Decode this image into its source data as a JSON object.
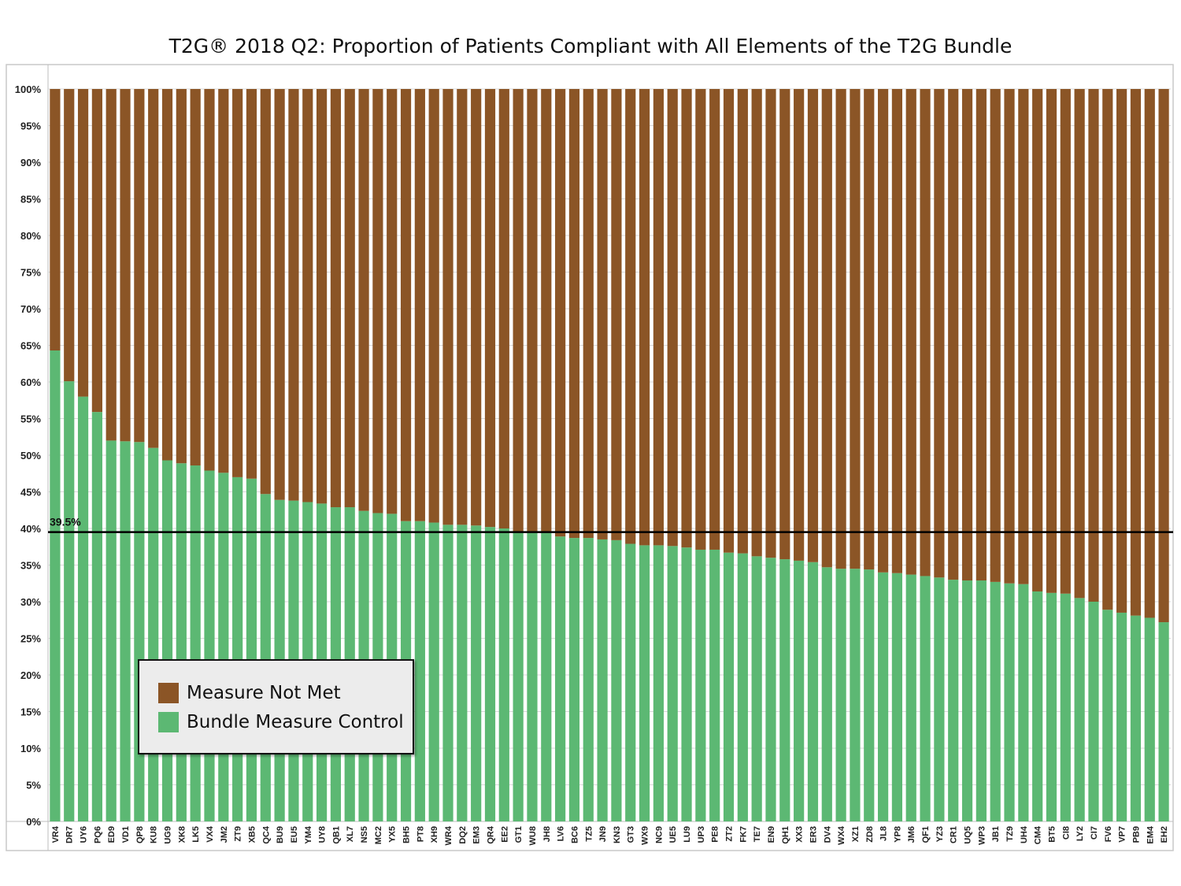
{
  "chart_data": {
    "type": "bar",
    "stacked": true,
    "title": "T2G® 2018 Q2: Proportion of Patients Compliant with All Elements of the T2G Bundle",
    "categories": [
      "VR4",
      "DR7",
      "UY6",
      "PQ6",
      "ED9",
      "VD1",
      "QP8",
      "KU8",
      "UG9",
      "XK8",
      "LK5",
      "VX4",
      "JM2",
      "ZT9",
      "XB5",
      "QC4",
      "BU9",
      "EU5",
      "YM4",
      "UY8",
      "QB1",
      "XL7",
      "NS5",
      "MC2",
      "YX5",
      "BH5",
      "PT8",
      "XH9",
      "WR4",
      "DQ2",
      "EM3",
      "QR4",
      "EE2",
      "GT1",
      "WU8",
      "JH8",
      "LV6",
      "BC6",
      "TZ5",
      "JN9",
      "KN3",
      "GT3",
      "WX9",
      "NC9",
      "UE5",
      "LU9",
      "UP3",
      "PE8",
      "ZT2",
      "FK7",
      "TE7",
      "EN9",
      "QH1",
      "XX3",
      "ER3",
      "DV4",
      "WX4",
      "XZ1",
      "ZD8",
      "JL8",
      "YP8",
      "JM6",
      "QF1",
      "YZ3",
      "CR1",
      "UQ5",
      "WP3",
      "JB1",
      "TZ9",
      "UH4",
      "CM4",
      "BT5",
      "CI8",
      "LY2",
      "CI7",
      "FV6",
      "VP7",
      "PB9",
      "EM4",
      "EH2"
    ],
    "series": [
      {
        "name": "Bundle Measure Control",
        "color": "#5cb873",
        "values": [
          64.3,
          60.1,
          58.0,
          55.9,
          52.0,
          51.9,
          51.8,
          51.0,
          49.3,
          48.9,
          48.6,
          47.9,
          47.6,
          47.0,
          46.8,
          44.7,
          43.9,
          43.8,
          43.6,
          43.4,
          42.9,
          42.9,
          42.4,
          42.1,
          42.0,
          41.0,
          41.0,
          40.8,
          40.5,
          40.5,
          40.4,
          40.2,
          40.0,
          39.5,
          39.5,
          39.4,
          38.9,
          38.7,
          38.7,
          38.5,
          38.4,
          37.9,
          37.7,
          37.7,
          37.6,
          37.4,
          37.1,
          37.1,
          36.7,
          36.6,
          36.2,
          36.0,
          35.8,
          35.6,
          35.4,
          34.7,
          34.5,
          34.5,
          34.4,
          34.0,
          33.9,
          33.7,
          33.5,
          33.3,
          33.0,
          32.9,
          32.9,
          32.7,
          32.5,
          32.4,
          31.4,
          31.2,
          31.1,
          30.5,
          30.0,
          28.9,
          28.5,
          28.1,
          27.8,
          27.2
        ]
      },
      {
        "name": "Measure Not Met",
        "color": "#8b5526",
        "values": [
          35.7,
          39.9,
          42.0,
          44.1,
          48.0,
          48.1,
          48.2,
          49.0,
          50.7,
          51.1,
          51.4,
          52.1,
          52.4,
          53.0,
          53.2,
          55.3,
          56.1,
          56.2,
          56.4,
          56.6,
          57.1,
          57.1,
          57.6,
          57.9,
          58.0,
          59.0,
          59.0,
          59.2,
          59.5,
          59.5,
          59.6,
          59.8,
          60.0,
          60.5,
          60.5,
          60.6,
          61.1,
          61.3,
          61.3,
          61.5,
          61.6,
          62.1,
          62.3,
          62.3,
          62.4,
          62.6,
          62.9,
          62.9,
          63.3,
          63.4,
          63.8,
          64.0,
          64.2,
          64.4,
          64.6,
          65.3,
          65.5,
          65.5,
          65.6,
          66.0,
          66.1,
          66.3,
          66.5,
          66.7,
          67.0,
          67.1,
          67.1,
          67.3,
          67.5,
          67.6,
          68.6,
          68.8,
          68.9,
          69.5,
          70.0,
          71.1,
          71.5,
          71.9,
          72.2,
          72.8
        ]
      }
    ],
    "ylim": [
      0,
      100
    ],
    "yticks": [
      "0%",
      "5%",
      "10%",
      "15%",
      "20%",
      "25%",
      "30%",
      "35%",
      "40%",
      "45%",
      "50%",
      "55%",
      "60%",
      "65%",
      "70%",
      "75%",
      "80%",
      "85%",
      "90%",
      "95%",
      "100%"
    ],
    "grid": true,
    "reference_line": {
      "value": 39.5,
      "label": "39.5%",
      "color": "#000000"
    },
    "legend_placement": "bottom-left"
  },
  "legend": {
    "items": [
      {
        "label": "Measure Not Met",
        "color": "#8b5526"
      },
      {
        "label": "Bundle Measure Control",
        "color": "#5cb873"
      }
    ]
  }
}
